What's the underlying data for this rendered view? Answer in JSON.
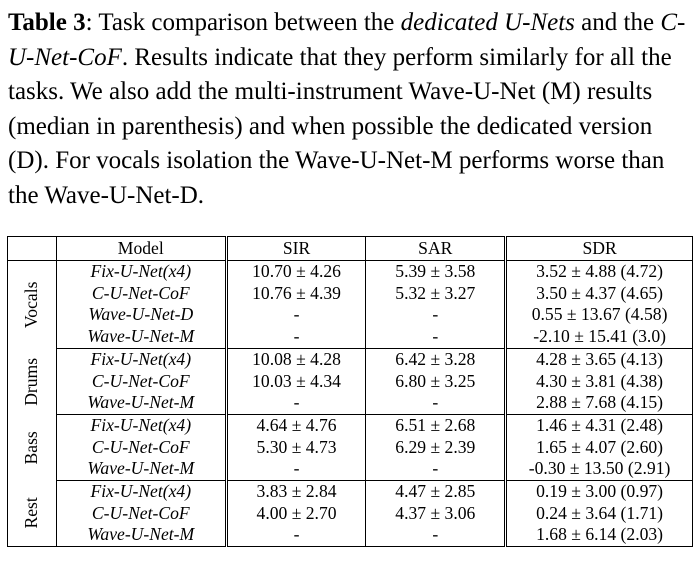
{
  "caption": {
    "label": "Table 3",
    "segments": [
      {
        "text": ": Task comparison between the ",
        "italic": false
      },
      {
        "text": "dedicated U-Nets",
        "italic": true
      },
      {
        "text": " and the ",
        "italic": false
      },
      {
        "text": "C-U-Net-CoF",
        "italic": true
      },
      {
        "text": ". Results indicate that they perform similarly for all the tasks. We also add the multi-instrument Wave-U-Net (M) results (median in parenthesis) and when possible the dedicated version (D). For vocals isolation the Wave-U-Net-M performs worse than the Wave-U-Net-D.",
        "italic": false
      }
    ]
  },
  "table": {
    "headers": [
      "Model",
      "SIR",
      "SAR",
      "SDR"
    ],
    "groups": [
      {
        "name": "Vocals",
        "rows": [
          {
            "model": "Fix-U-Net(x4)",
            "sir": "10.70 ± 4.26",
            "sar": "5.39 ± 3.58",
            "sdr": "3.52 ± 4.88 (4.72)"
          },
          {
            "model": "C-U-Net-CoF",
            "sir": "10.76 ± 4.39",
            "sar": "5.32 ± 3.27",
            "sdr": "3.50 ± 4.37 (4.65)"
          },
          {
            "model": "Wave-U-Net-D",
            "sir": "-",
            "sar": "-",
            "sdr": "0.55 ± 13.67 (4.58)"
          },
          {
            "model": "Wave-U-Net-M",
            "sir": "-",
            "sar": "-",
            "sdr": "-2.10 ± 15.41 (3.0)"
          }
        ]
      },
      {
        "name": "Drums",
        "rows": [
          {
            "model": "Fix-U-Net(x4)",
            "sir": "10.08 ± 4.28",
            "sar": "6.42 ± 3.28",
            "sdr": "4.28 ± 3.65 (4.13)"
          },
          {
            "model": "C-U-Net-CoF",
            "sir": "10.03 ± 4.34",
            "sar": "6.80 ± 3.25",
            "sdr": "4.30 ± 3.81 (4.38)"
          },
          {
            "model": "Wave-U-Net-M",
            "sir": "-",
            "sar": "-",
            "sdr": "2.88 ± 7.68 (4.15)"
          }
        ]
      },
      {
        "name": "Bass",
        "rows": [
          {
            "model": "Fix-U-Net(x4)",
            "sir": "4.64 ± 4.76",
            "sar": "6.51 ± 2.68",
            "sdr": "1.46 ± 4.31 (2.48)"
          },
          {
            "model": "C-U-Net-CoF",
            "sir": "5.30 ± 4.73",
            "sar": "6.29 ± 2.39",
            "sdr": "1.65 ± 4.07 (2.60)"
          },
          {
            "model": "Wave-U-Net-M",
            "sir": "-",
            "sar": "-",
            "sdr": "-0.30 ± 13.50 (2.91)"
          }
        ]
      },
      {
        "name": "Rest",
        "rows": [
          {
            "model": "Fix-U-Net(x4)",
            "sir": "3.83 ± 2.84",
            "sar": "4.47 ± 2.85",
            "sdr": "0.19 ± 3.00 (0.97)"
          },
          {
            "model": "C-U-Net-CoF",
            "sir": "4.00 ± 2.70",
            "sar": "4.37 ± 3.06",
            "sdr": "0.24 ± 3.64 (1.71)"
          },
          {
            "model": "Wave-U-Net-M",
            "sir": "-",
            "sar": "-",
            "sdr": "1.68 ± 6.14 (2.03)"
          }
        ]
      }
    ]
  }
}
